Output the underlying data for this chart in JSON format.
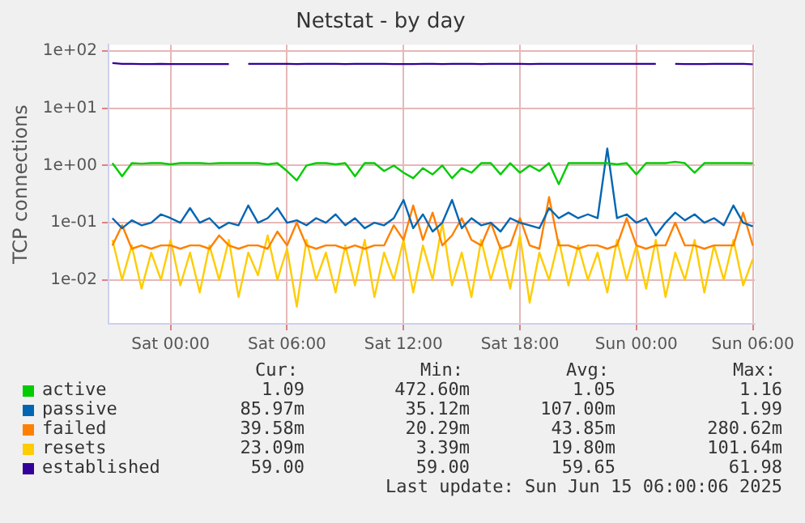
{
  "chart_data": {
    "type": "line",
    "title": "Netstat - by day",
    "ylabel": "TCP connections",
    "x": [
      "2025-06-13T21:00",
      "2025-06-13T21:30",
      "2025-06-13T22:00",
      "2025-06-13T22:30",
      "2025-06-13T23:00",
      "2025-06-13T23:30",
      "2025-06-14T00:00",
      "2025-06-14T00:30",
      "2025-06-14T01:00",
      "2025-06-14T01:30",
      "2025-06-14T02:00",
      "2025-06-14T02:30",
      "2025-06-14T03:00",
      "2025-06-14T03:30",
      "2025-06-14T04:00",
      "2025-06-14T04:30",
      "2025-06-14T05:00",
      "2025-06-14T05:30",
      "2025-06-14T06:00",
      "2025-06-14T06:30",
      "2025-06-14T07:00",
      "2025-06-14T07:30",
      "2025-06-14T08:00",
      "2025-06-14T08:30",
      "2025-06-14T09:00",
      "2025-06-14T09:30",
      "2025-06-14T10:00",
      "2025-06-14T10:30",
      "2025-06-14T11:00",
      "2025-06-14T11:30",
      "2025-06-14T12:00",
      "2025-06-14T12:30",
      "2025-06-14T13:00",
      "2025-06-14T13:30",
      "2025-06-14T14:00",
      "2025-06-14T14:30",
      "2025-06-14T15:00",
      "2025-06-14T15:30",
      "2025-06-14T16:00",
      "2025-06-14T16:30",
      "2025-06-14T17:00",
      "2025-06-14T17:30",
      "2025-06-14T18:00",
      "2025-06-14T18:30",
      "2025-06-14T19:00",
      "2025-06-14T19:30",
      "2025-06-14T20:00",
      "2025-06-14T20:30",
      "2025-06-14T21:00",
      "2025-06-14T21:30",
      "2025-06-14T22:00",
      "2025-06-14T22:30",
      "2025-06-14T23:00",
      "2025-06-14T23:30",
      "2025-06-15T00:00",
      "2025-06-15T00:30",
      "2025-06-15T01:00",
      "2025-06-15T01:30",
      "2025-06-15T02:00",
      "2025-06-15T02:30",
      "2025-06-15T03:00",
      "2025-06-15T03:30",
      "2025-06-15T04:00",
      "2025-06-15T04:30",
      "2025-06-15T05:00",
      "2025-06-15T05:30",
      "2025-06-15T06:00"
    ],
    "xlim": [
      "2025-06-13T20:48",
      "2025-06-15T06:06"
    ],
    "xticks": [
      {
        "value": "2025-06-14T00:00",
        "label": "Sat 00:00"
      },
      {
        "value": "2025-06-14T06:00",
        "label": "Sat 06:00"
      },
      {
        "value": "2025-06-14T12:00",
        "label": "Sat 12:00"
      },
      {
        "value": "2025-06-14T18:00",
        "label": "Sat 18:00"
      },
      {
        "value": "2025-06-15T00:00",
        "label": "Sun 00:00"
      },
      {
        "value": "2025-06-15T06:00",
        "label": "Sun 06:00"
      }
    ],
    "ylim": [
      0.0017,
      130
    ],
    "yticks": [
      {
        "value": 0.01,
        "label": "1e-02"
      },
      {
        "value": 0.1,
        "label": "1e-01"
      },
      {
        "value": 1,
        "label": "1e+00"
      },
      {
        "value": 10,
        "label": "1e+01"
      },
      {
        "value": 100,
        "label": "1e+02"
      }
    ],
    "log": "y",
    "grid": true,
    "legend": "bottom",
    "marker": "none",
    "line_style": "solid",
    "series": [
      {
        "name": "active",
        "color": "#00cc00",
        "values": [
          1.1,
          0.65,
          1.1,
          1.08,
          1.1,
          1.1,
          1.05,
          1.1,
          1.1,
          1.1,
          1.08,
          1.1,
          1.1,
          1.1,
          1.1,
          1.1,
          1.05,
          1.1,
          0.8,
          0.55,
          1.0,
          1.1,
          1.1,
          1.05,
          1.1,
          0.65,
          1.1,
          1.1,
          0.8,
          1.0,
          0.75,
          0.6,
          0.9,
          0.7,
          1.0,
          0.6,
          0.9,
          0.75,
          1.1,
          1.1,
          0.7,
          1.1,
          0.75,
          1.0,
          0.8,
          1.1,
          0.47,
          1.1,
          1.1,
          1.1,
          1.1,
          1.1,
          1.05,
          1.1,
          0.7,
          1.1,
          1.1,
          1.1,
          1.16,
          1.1,
          0.75,
          1.1,
          1.1,
          1.1,
          1.1,
          1.1,
          1.09
        ]
      },
      {
        "name": "passive",
        "color": "#0066b3",
        "values": [
          0.12,
          0.08,
          0.11,
          0.09,
          0.1,
          0.14,
          0.12,
          0.1,
          0.18,
          0.1,
          0.12,
          0.08,
          0.1,
          0.09,
          0.2,
          0.1,
          0.12,
          0.18,
          0.1,
          0.11,
          0.09,
          0.12,
          0.1,
          0.14,
          0.09,
          0.12,
          0.08,
          0.1,
          0.09,
          0.12,
          0.25,
          0.08,
          0.14,
          0.07,
          0.1,
          0.25,
          0.08,
          0.12,
          0.09,
          0.1,
          0.07,
          0.12,
          0.1,
          0.09,
          0.08,
          0.18,
          0.12,
          0.15,
          0.12,
          0.14,
          0.12,
          1.99,
          0.12,
          0.14,
          0.1,
          0.12,
          0.06,
          0.1,
          0.15,
          0.11,
          0.14,
          0.1,
          0.12,
          0.09,
          0.2,
          0.1,
          0.086
        ]
      },
      {
        "name": "failed",
        "color": "#ff8000",
        "values": [
          0.04,
          0.09,
          0.035,
          0.04,
          0.035,
          0.04,
          0.04,
          0.035,
          0.04,
          0.04,
          0.035,
          0.06,
          0.04,
          0.035,
          0.04,
          0.04,
          0.035,
          0.07,
          0.04,
          0.1,
          0.04,
          0.035,
          0.04,
          0.04,
          0.035,
          0.04,
          0.035,
          0.04,
          0.04,
          0.09,
          0.05,
          0.2,
          0.05,
          0.15,
          0.04,
          0.06,
          0.12,
          0.05,
          0.04,
          0.1,
          0.035,
          0.04,
          0.12,
          0.04,
          0.035,
          0.28,
          0.04,
          0.04,
          0.035,
          0.04,
          0.04,
          0.035,
          0.04,
          0.12,
          0.04,
          0.035,
          0.04,
          0.04,
          0.1,
          0.04,
          0.04,
          0.035,
          0.04,
          0.04,
          0.04,
          0.15,
          0.0396
        ]
      },
      {
        "name": "resets",
        "color": "#ffcc00",
        "values": [
          0.05,
          0.01,
          0.04,
          0.007,
          0.03,
          0.01,
          0.05,
          0.008,
          0.03,
          0.006,
          0.04,
          0.01,
          0.05,
          0.005,
          0.03,
          0.012,
          0.06,
          0.01,
          0.035,
          0.0034,
          0.05,
          0.01,
          0.03,
          0.006,
          0.04,
          0.008,
          0.05,
          0.005,
          0.03,
          0.01,
          0.05,
          0.006,
          0.04,
          0.01,
          0.1,
          0.008,
          0.03,
          0.005,
          0.05,
          0.01,
          0.04,
          0.007,
          0.06,
          0.004,
          0.03,
          0.01,
          0.05,
          0.008,
          0.04,
          0.01,
          0.03,
          0.006,
          0.05,
          0.01,
          0.04,
          0.007,
          0.05,
          0.005,
          0.03,
          0.01,
          0.05,
          0.006,
          0.04,
          0.01,
          0.05,
          0.008,
          0.0231
        ]
      },
      {
        "name": "established",
        "color": "#330099",
        "values": [
          61.98,
          60,
          60,
          59.5,
          59.5,
          60,
          59.5,
          59.5,
          59.5,
          59.5,
          59.5,
          59.5,
          59.5,
          null,
          60,
          60,
          60,
          60,
          60,
          59.5,
          60,
          60,
          60,
          60,
          59.5,
          60,
          60,
          60,
          60,
          59.5,
          59.5,
          59.5,
          60,
          60,
          59.5,
          60,
          60,
          60,
          59.5,
          60,
          60,
          60,
          60,
          59.5,
          60,
          60,
          60,
          60,
          60,
          60,
          60,
          60,
          60,
          60,
          60,
          60,
          60,
          null,
          60,
          59.5,
          59.5,
          59.5,
          60,
          60,
          60,
          60,
          59
        ]
      }
    ],
    "annotations": [
      "Cur:",
      "Min:",
      "Avg:",
      "Max:",
      "1.09",
      "472.60m",
      "1.05",
      "1.16",
      "85.97m",
      "35.12m",
      "107.00m",
      "1.99",
      "39.58m",
      "20.29m",
      "43.85m",
      "280.62m",
      "23.09m",
      "3.39m",
      "19.80m",
      "101.64m",
      "59.00",
      "59.00",
      "59.65",
      "61.98",
      "Last update: Sun Jun 15 06:00:06 2025"
    ]
  }
}
